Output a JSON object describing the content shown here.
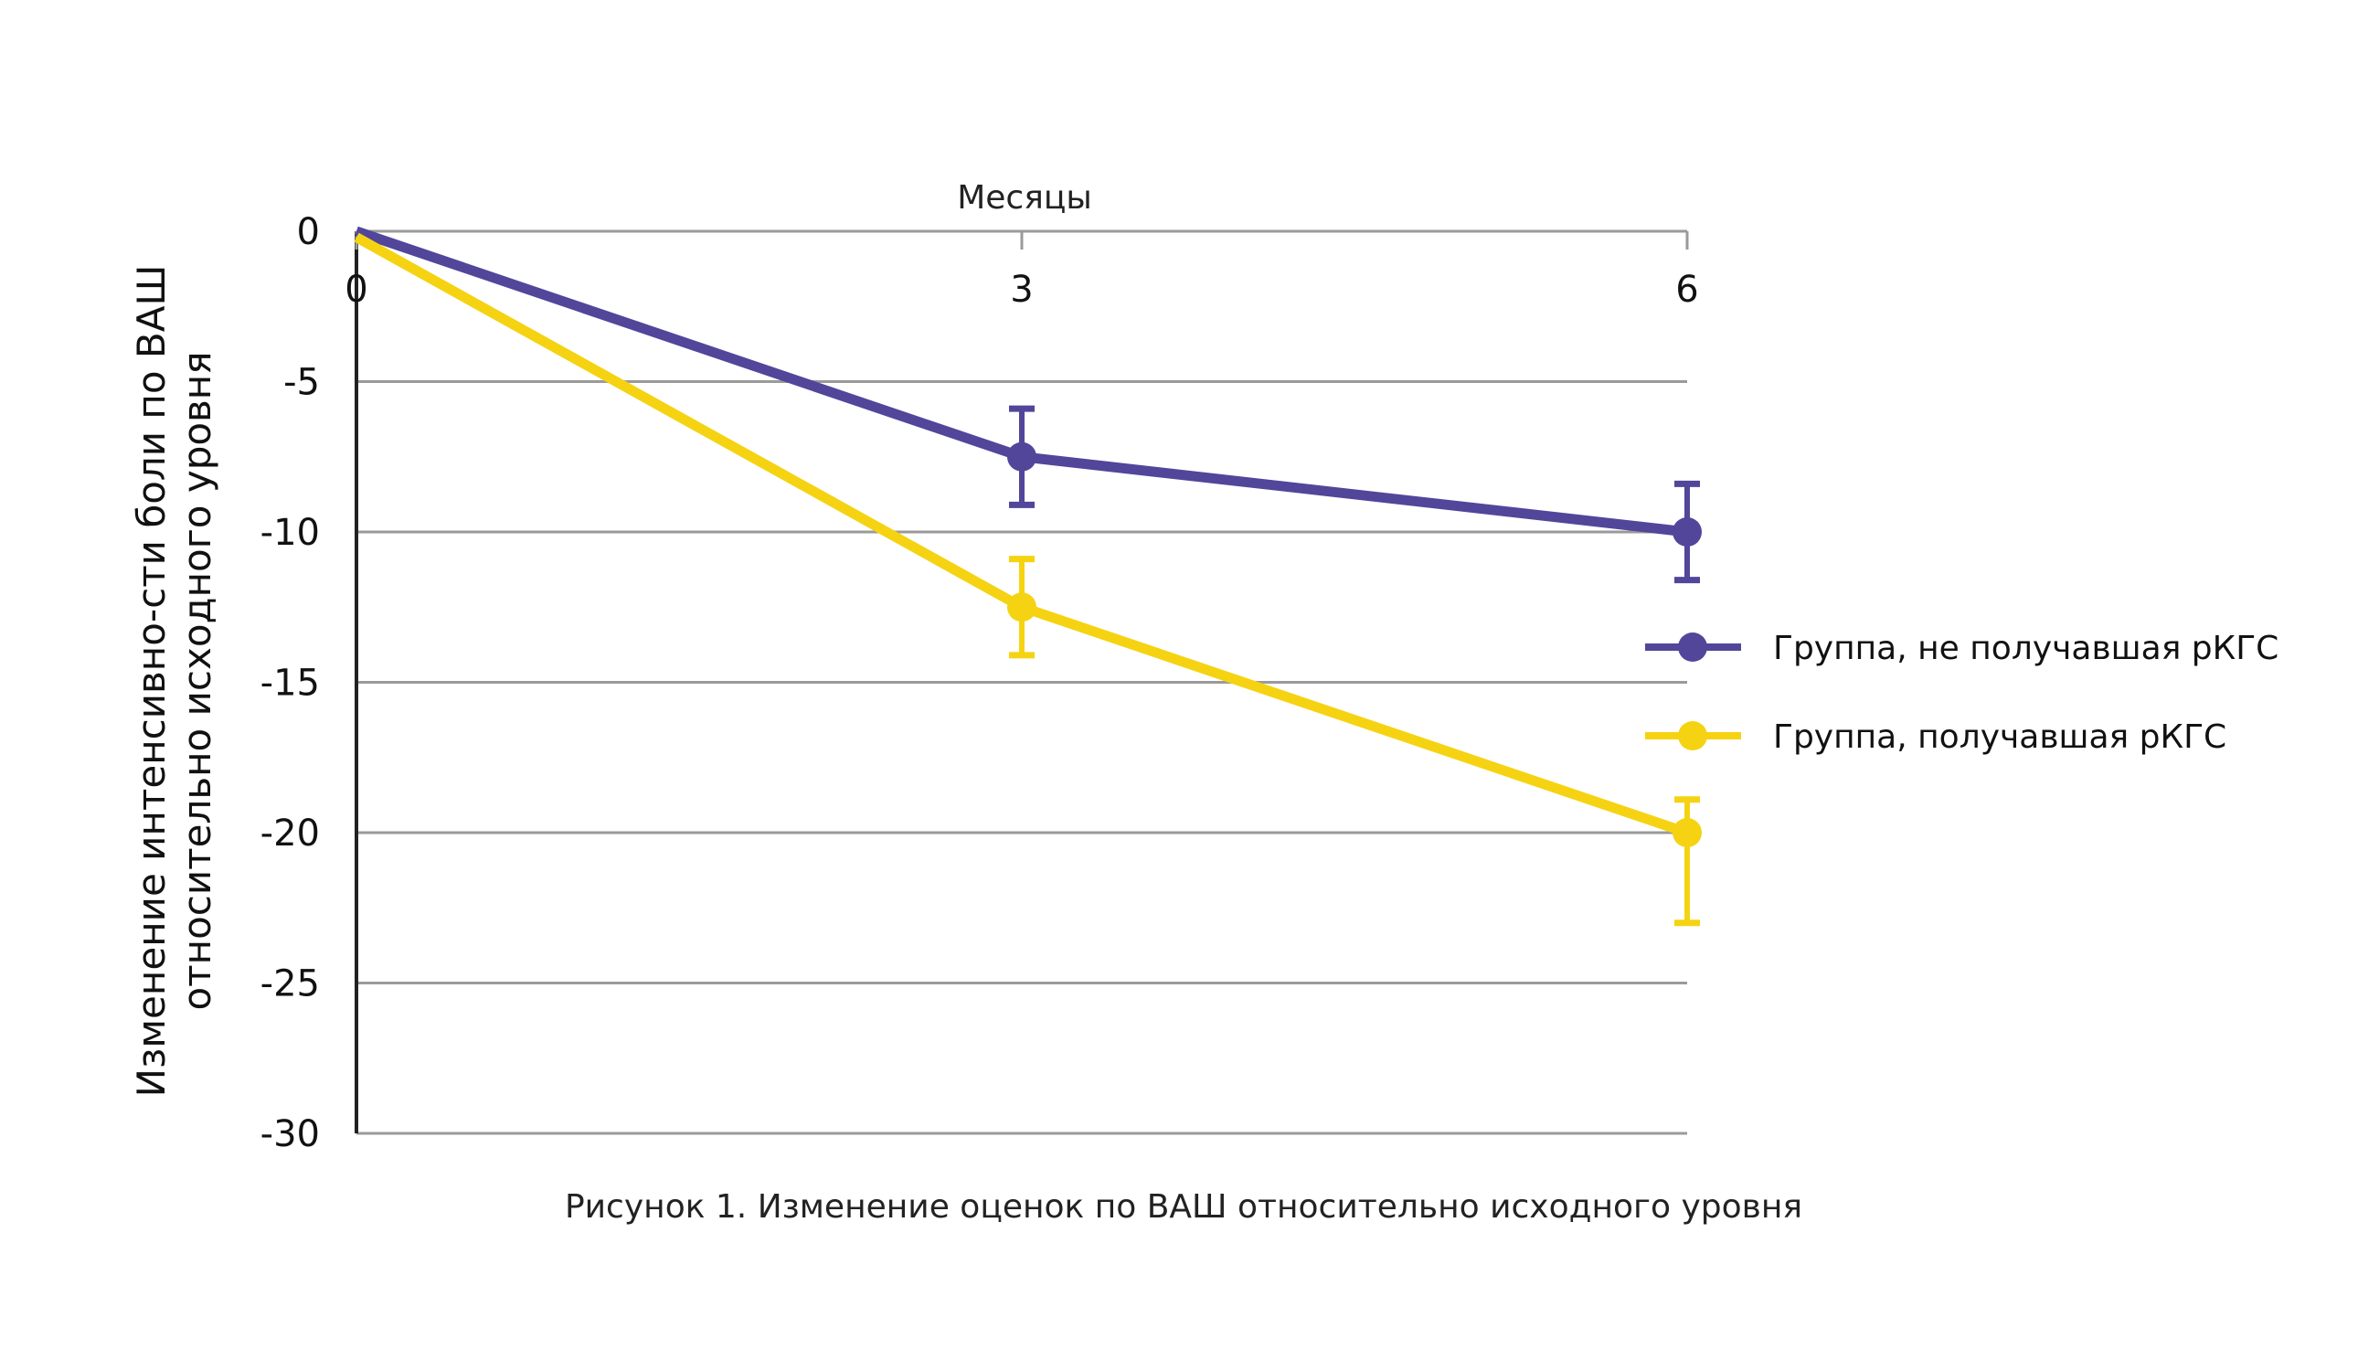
{
  "chart_data": {
    "type": "line",
    "xlabel": "Месяцы",
    "ylabel_lines": [
      "Изменение интенсивно-сти боли по ВАШ",
      "относительно исходного уровня"
    ],
    "caption": "Рисунок 1. Изменение оценок по ВАШ относительно исходного уровня",
    "x": [
      0,
      3,
      6
    ],
    "x_ticks": [
      "0",
      "3",
      "6"
    ],
    "y_ticks": [
      "0",
      "-5",
      "-10",
      "-15",
      "-20",
      "-25",
      "-30"
    ],
    "ylim": [
      -30,
      0
    ],
    "x_axis_position": "top",
    "grid": true,
    "legend_position": "right",
    "series": [
      {
        "name": "Группа, не получавшая рКГС",
        "color": "#51469a",
        "values": [
          0,
          -7.5,
          -10
        ],
        "error_low": [
          null,
          -9.1,
          -11.6
        ],
        "error_high": [
          null,
          -5.9,
          -8.4
        ]
      },
      {
        "name": "Группа, получавшая рКГС",
        "color": "#f5d312",
        "values": [
          -0.2,
          -12.5,
          -20
        ],
        "error_low": [
          null,
          -14.1,
          -23
        ],
        "error_high": [
          null,
          -10.9,
          -18.9
        ]
      }
    ]
  }
}
